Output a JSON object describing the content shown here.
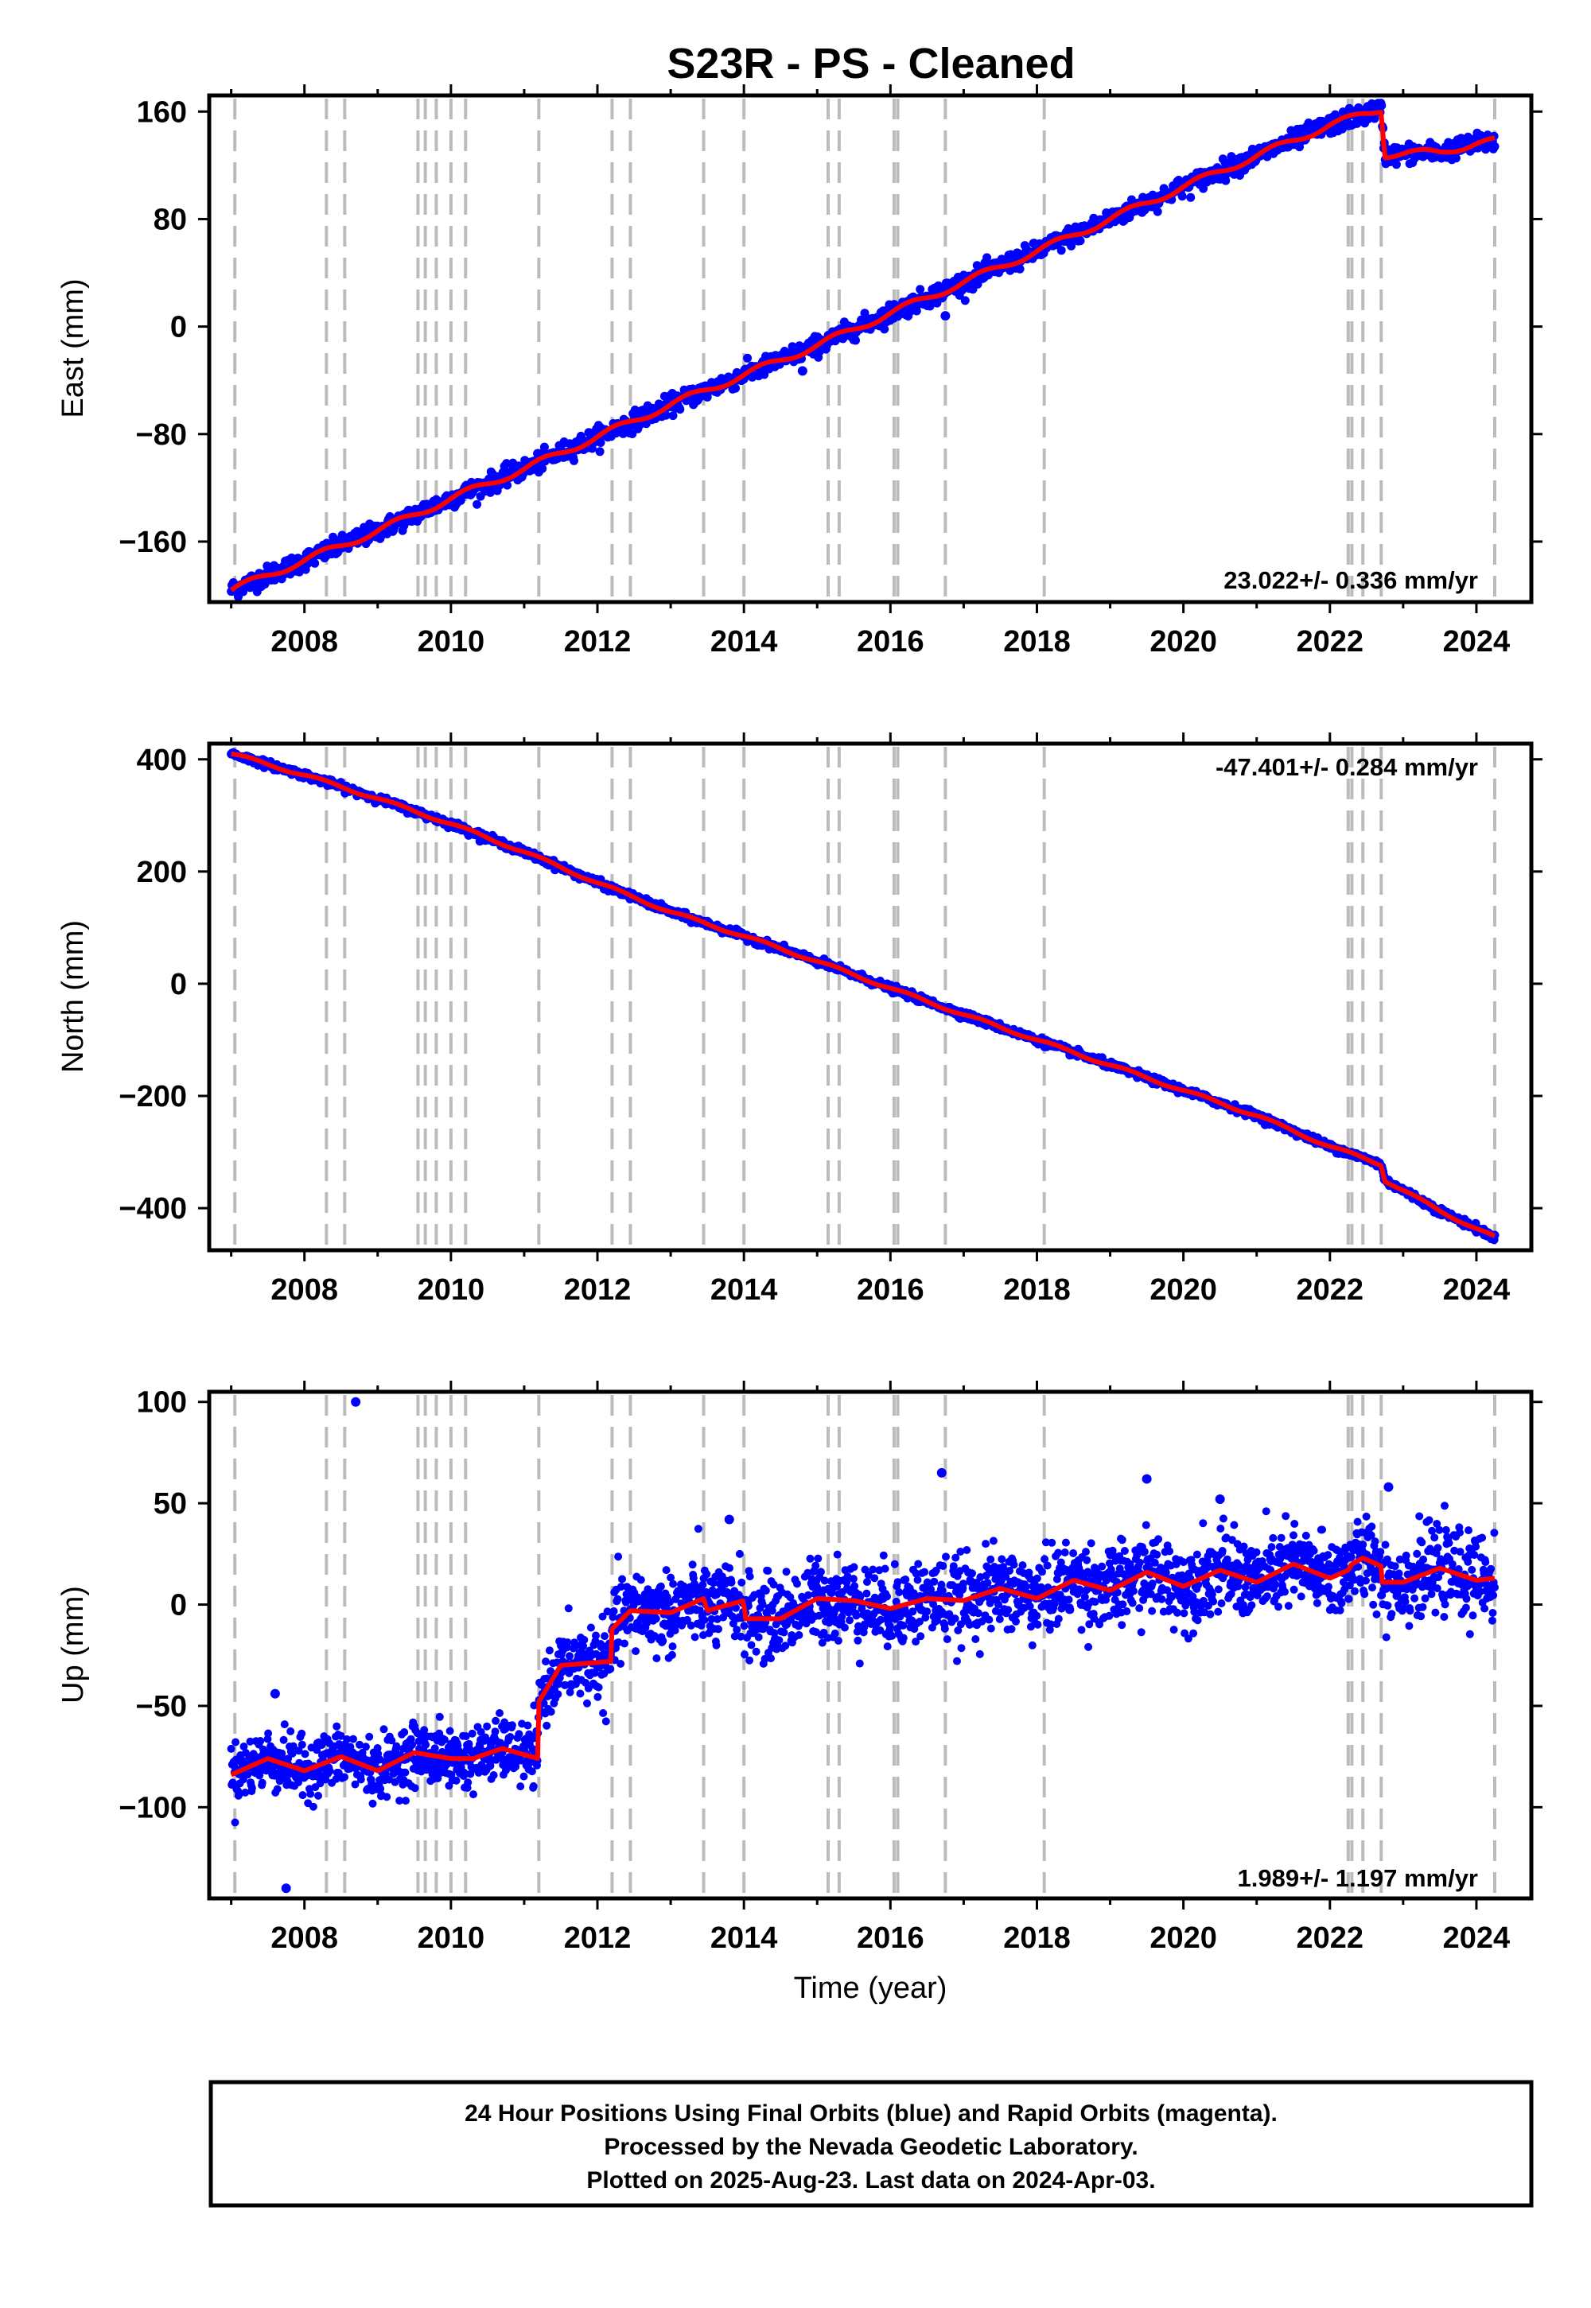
{
  "title": "S23R  - PS - Cleaned",
  "xlabel": "Time (year)",
  "footer": {
    "line1": "24 Hour Positions Using Final Orbits (blue) and Rapid Orbits (magenta).",
    "line2": "Processed by the Nevada Geodetic Laboratory.",
    "line3": "Plotted on 2025-Aug-23. Last data on 2024-Apr-03."
  },
  "colors": {
    "points": "#0000ff",
    "model": "#ff0000",
    "offset_lines": "#bbbbbb",
    "frame": "#000000"
  },
  "chart_data": [
    {
      "type": "scatter",
      "name": "east",
      "ylabel": "East (mm)",
      "rate_text": "23.022+/- 0.336 mm/yr",
      "rate_position": "bottom-right",
      "xlim": [
        2006.7,
        2024.75
      ],
      "ylim": [
        -205,
        172
      ],
      "x_ticks": [
        2008,
        2010,
        2012,
        2014,
        2016,
        2018,
        2020,
        2022,
        2024
      ],
      "y_ticks": [
        -160,
        -80,
        0,
        80,
        160
      ],
      "y_tick_labels": [
        "−160",
        "−80",
        "0",
        "80",
        "160"
      ],
      "offsets": [
        2007.05,
        2008.3,
        2008.55,
        2009.55,
        2009.65,
        2009.8,
        2010.0,
        2010.2,
        2011.2,
        2012.2,
        2012.45,
        2013.45,
        2014.0,
        2015.15,
        2015.3,
        2016.05,
        2016.1,
        2016.75,
        2018.1,
        2022.25,
        2022.3,
        2022.45,
        2022.7,
        2024.25
      ],
      "trend_knots": [
        [
          2007.0,
          -196
        ],
        [
          2008.0,
          -174
        ],
        [
          2009.0,
          -152
        ],
        [
          2010.0,
          -128
        ],
        [
          2011.0,
          -106
        ],
        [
          2012.0,
          -82
        ],
        [
          2013.0,
          -58
        ],
        [
          2014.0,
          -36
        ],
        [
          2015.0,
          -14
        ],
        [
          2016.0,
          10
        ],
        [
          2017.0,
          33
        ],
        [
          2018.0,
          56
        ],
        [
          2019.0,
          80
        ],
        [
          2020.0,
          104
        ],
        [
          2021.0,
          127
        ],
        [
          2022.0,
          150
        ],
        [
          2022.7,
          162
        ],
        [
          2022.75,
          128
        ],
        [
          2023.5,
          130
        ],
        [
          2024.0,
          136
        ],
        [
          2024.25,
          138
        ]
      ],
      "noise_mm": 3.5,
      "outliers": [
        [
          2016.75,
          8
        ],
        [
          2014.8,
          -33
        ],
        [
          2022.5,
          162
        ]
      ],
      "data_span": [
        2007.0,
        2024.25
      ]
    },
    {
      "type": "scatter",
      "name": "north",
      "ylabel": "North (mm)",
      "rate_text": "-47.401+/- 0.284 mm/yr",
      "rate_position": "top-right",
      "xlim": [
        2006.7,
        2024.75
      ],
      "ylim": [
        -475,
        428
      ],
      "x_ticks": [
        2008,
        2010,
        2012,
        2014,
        2016,
        2018,
        2020,
        2022,
        2024
      ],
      "y_ticks": [
        -400,
        -200,
        0,
        200,
        400
      ],
      "y_tick_labels": [
        "−400",
        "−200",
        "0",
        "200",
        "400"
      ],
      "offsets": [
        2007.05,
        2008.3,
        2008.55,
        2009.55,
        2009.65,
        2009.8,
        2010.0,
        2010.2,
        2011.2,
        2012.2,
        2012.45,
        2013.45,
        2014.0,
        2015.15,
        2015.3,
        2016.05,
        2016.1,
        2016.75,
        2018.1,
        2022.25,
        2022.3,
        2022.45,
        2022.7,
        2024.25
      ],
      "trend_knots": [
        [
          2007.0,
          410
        ],
        [
          2008.0,
          372
        ],
        [
          2009.0,
          330
        ],
        [
          2010.0,
          285
        ],
        [
          2011.0,
          235
        ],
        [
          2012.0,
          180
        ],
        [
          2013.0,
          128
        ],
        [
          2014.0,
          85
        ],
        [
          2015.0,
          40
        ],
        [
          2016.0,
          -8
        ],
        [
          2017.0,
          -55
        ],
        [
          2018.0,
          -100
        ],
        [
          2019.0,
          -145
        ],
        [
          2020.0,
          -190
        ],
        [
          2021.0,
          -235
        ],
        [
          2022.0,
          -290
        ],
        [
          2022.7,
          -322
        ],
        [
          2022.75,
          -350
        ],
        [
          2023.5,
          -405
        ],
        [
          2024.25,
          -452
        ]
      ],
      "noise_mm": 3,
      "outliers": [],
      "data_span": [
        2007.0,
        2024.25
      ]
    },
    {
      "type": "scatter",
      "name": "up",
      "ylabel": "Up (mm)",
      "rate_text": "1.989+/- 1.197 mm/yr",
      "rate_position": "bottom-right",
      "xlim": [
        2006.7,
        2024.75
      ],
      "ylim": [
        -145,
        105
      ],
      "x_ticks": [
        2008,
        2010,
        2012,
        2014,
        2016,
        2018,
        2020,
        2022,
        2024
      ],
      "y_ticks": [
        -100,
        -50,
        0,
        50,
        100
      ],
      "y_tick_labels": [
        "−100",
        "−50",
        "0",
        "50",
        "100"
      ],
      "offsets": [
        2007.05,
        2008.3,
        2008.55,
        2009.55,
        2009.65,
        2009.8,
        2010.0,
        2010.2,
        2011.2,
        2012.2,
        2012.45,
        2013.45,
        2014.0,
        2015.15,
        2015.3,
        2016.05,
        2016.1,
        2016.75,
        2018.1,
        2022.25,
        2022.3,
        2022.45,
        2022.7,
        2024.25
      ],
      "model_knots": [
        [
          2007.0,
          -84
        ],
        [
          2007.5,
          -76
        ],
        [
          2008.0,
          -82
        ],
        [
          2008.5,
          -75
        ],
        [
          2009.0,
          -82
        ],
        [
          2009.5,
          -73
        ],
        [
          2010.0,
          -76
        ],
        [
          2010.3,
          -76
        ],
        [
          2010.7,
          -71
        ],
        [
          2011.19,
          -76
        ],
        [
          2011.2,
          -48
        ],
        [
          2011.5,
          -30
        ],
        [
          2012.19,
          -28
        ],
        [
          2012.2,
          -12
        ],
        [
          2012.45,
          -3
        ],
        [
          2013.0,
          -4
        ],
        [
          2013.45,
          3
        ],
        [
          2013.5,
          -3
        ],
        [
          2014.0,
          2
        ],
        [
          2014.01,
          -7
        ],
        [
          2014.5,
          -7
        ],
        [
          2015.0,
          3
        ],
        [
          2015.5,
          2
        ],
        [
          2016.0,
          -2
        ],
        [
          2016.5,
          3
        ],
        [
          2017.0,
          2
        ],
        [
          2017.5,
          8
        ],
        [
          2018.0,
          3
        ],
        [
          2018.5,
          12
        ],
        [
          2019.0,
          7
        ],
        [
          2019.5,
          16
        ],
        [
          2020.0,
          9
        ],
        [
          2020.5,
          17
        ],
        [
          2021.0,
          11
        ],
        [
          2021.5,
          20
        ],
        [
          2022.0,
          13
        ],
        [
          2022.25,
          17
        ],
        [
          2022.3,
          20
        ],
        [
          2022.45,
          23
        ],
        [
          2022.7,
          19
        ],
        [
          2022.71,
          11
        ],
        [
          2023.0,
          11
        ],
        [
          2023.5,
          18
        ],
        [
          2024.0,
          12
        ],
        [
          2024.25,
          13
        ]
      ],
      "segments": [
        {
          "x_range": [
            2007.0,
            2011.6
          ],
          "center": -78,
          "spread": 16
        },
        {
          "x_range": [
            2011.6,
            2012.5
          ],
          "center": -12,
          "spread": 22
        },
        {
          "x_range": [
            2012.5,
            2018.5
          ],
          "center": 0,
          "spread": 22
        },
        {
          "x_range": [
            2018.5,
            2024.25
          ],
          "center": 10,
          "spread": 22
        }
      ],
      "outliers": [
        [
          2007.75,
          -140
        ],
        [
          2008.7,
          100
        ],
        [
          2016.7,
          65
        ],
        [
          2019.5,
          62
        ],
        [
          2007.6,
          -44
        ],
        [
          2013.8,
          42
        ],
        [
          2022.8,
          58
        ],
        [
          2020.5,
          52
        ]
      ],
      "data_span": [
        2007.0,
        2024.25
      ]
    }
  ]
}
